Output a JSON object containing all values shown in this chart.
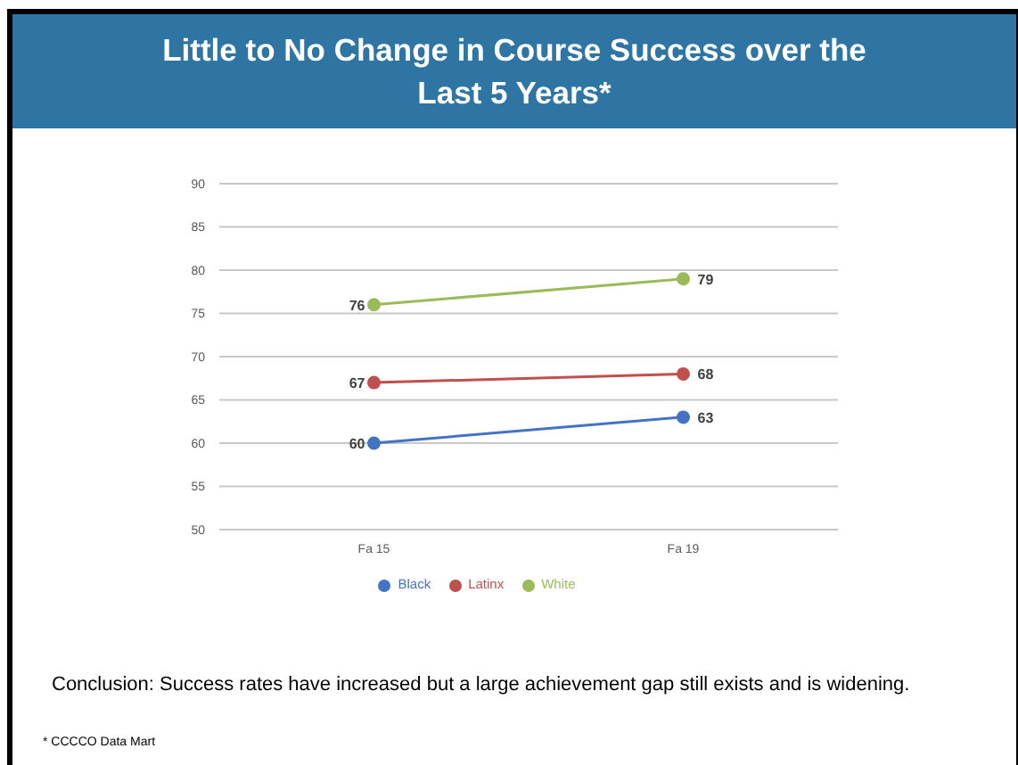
{
  "chart_data": {
    "type": "line",
    "title": "Little to No Change in Course Success over the Last 5 Years*",
    "categories": [
      "Fa 15",
      "Fa 19"
    ],
    "series": [
      {
        "name": "Black",
        "color": "#4472c4",
        "values": [
          60,
          63
        ]
      },
      {
        "name": "Latinx",
        "color": "#c0504d",
        "values": [
          67,
          68
        ]
      },
      {
        "name": "White",
        "color": "#9bbb59",
        "values": [
          76,
          79
        ]
      }
    ],
    "ylim": [
      50,
      90
    ],
    "yticks": [
      50,
      55,
      60,
      65,
      70,
      75,
      80,
      85,
      90
    ],
    "grid": "y",
    "legend": "bottom",
    "marker": "circle",
    "data_labels": true,
    "annotations": [
      "Conclusion: Success rates have increased but a large achievement gap still exists and is widening.",
      "* CCCCO Data Mart"
    ]
  }
}
